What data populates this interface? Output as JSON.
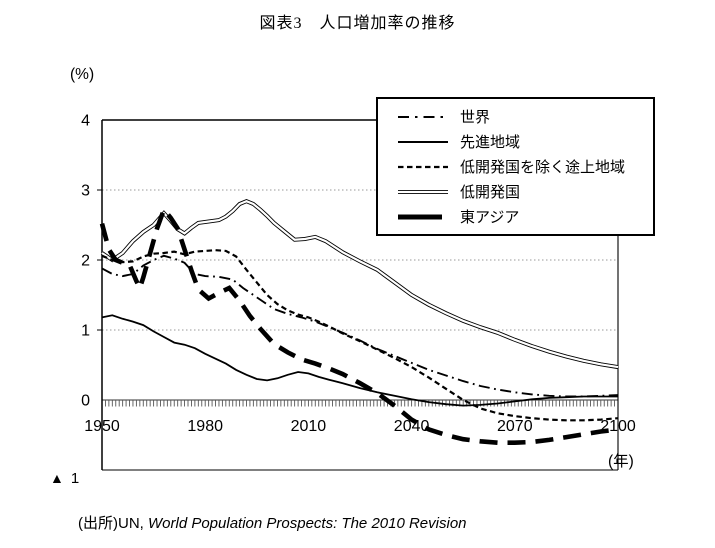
{
  "title": "図表3　人口増加率の推移",
  "source": {
    "prefix": "(出所)UN, ",
    "work": "World Population Prospects: The 2010 Revision"
  },
  "axis": {
    "neg_marker": "▲",
    "neg_value": "1"
  },
  "colors": {
    "line": "#000000",
    "grid": "#999999",
    "zero_axis": "#333333"
  },
  "chart_data": {
    "type": "line",
    "title": "人口増加率の推移",
    "ylabel": "(%)",
    "xlabel": "(年)",
    "xlim": [
      1950,
      2100
    ],
    "ylim": [
      -1,
      4
    ],
    "x_ticks": [
      1950,
      1980,
      2010,
      2040,
      2070,
      2100
    ],
    "y_ticks": [
      4,
      3,
      2,
      1,
      0
    ],
    "y_tick_neg": "▲ 1",
    "grid": "horizontal dotted gridlines at 1,2,3; zero axis drawn with yearly minor ticks",
    "legend_position": "boxed, top-right",
    "series": [
      {
        "key": "least-developed",
        "name": "低開発国",
        "line": "double",
        "points": [
          [
            1950,
            2.1
          ],
          [
            1953,
            2.0
          ],
          [
            1956,
            2.1
          ],
          [
            1959,
            2.27
          ],
          [
            1962,
            2.4
          ],
          [
            1965,
            2.5
          ],
          [
            1968,
            2.67
          ],
          [
            1970,
            2.56
          ],
          [
            1972,
            2.44
          ],
          [
            1974,
            2.38
          ],
          [
            1976,
            2.46
          ],
          [
            1978,
            2.53
          ],
          [
            1981,
            2.55
          ],
          [
            1984,
            2.57
          ],
          [
            1986,
            2.62
          ],
          [
            1988,
            2.7
          ],
          [
            1990,
            2.8
          ],
          [
            1992,
            2.84
          ],
          [
            1994,
            2.8
          ],
          [
            1996,
            2.72
          ],
          [
            1998,
            2.63
          ],
          [
            2000,
            2.53
          ],
          [
            2003,
            2.41
          ],
          [
            2006,
            2.29
          ],
          [
            2009,
            2.3
          ],
          [
            2012,
            2.33
          ],
          [
            2015,
            2.27
          ],
          [
            2020,
            2.11
          ],
          [
            2025,
            1.98
          ],
          [
            2030,
            1.86
          ],
          [
            2035,
            1.68
          ],
          [
            2040,
            1.5
          ],
          [
            2045,
            1.36
          ],
          [
            2050,
            1.24
          ],
          [
            2055,
            1.13
          ],
          [
            2060,
            1.04
          ],
          [
            2065,
            0.96
          ],
          [
            2070,
            0.86
          ],
          [
            2075,
            0.77
          ],
          [
            2080,
            0.69
          ],
          [
            2085,
            0.62
          ],
          [
            2090,
            0.56
          ],
          [
            2095,
            0.51
          ],
          [
            2100,
            0.47
          ]
        ]
      },
      {
        "key": "developing-excl-ldc",
        "name": "低開発国を除く途上地域",
        "line": "dashed",
        "points": [
          [
            1950,
            2.06
          ],
          [
            1953,
            2.0
          ],
          [
            1956,
            1.97
          ],
          [
            1959,
            1.98
          ],
          [
            1962,
            2.05
          ],
          [
            1965,
            2.09
          ],
          [
            1968,
            2.1
          ],
          [
            1971,
            2.12
          ],
          [
            1974,
            2.08
          ],
          [
            1977,
            2.12
          ],
          [
            1980,
            2.13
          ],
          [
            1983,
            2.14
          ],
          [
            1986,
            2.13
          ],
          [
            1989,
            2.05
          ],
          [
            1992,
            1.86
          ],
          [
            1995,
            1.68
          ],
          [
            1998,
            1.5
          ],
          [
            2001,
            1.37
          ],
          [
            2004,
            1.28
          ],
          [
            2007,
            1.22
          ],
          [
            2010,
            1.18
          ],
          [
            2013,
            1.12
          ],
          [
            2016,
            1.05
          ],
          [
            2020,
            0.95
          ],
          [
            2025,
            0.84
          ],
          [
            2030,
            0.72
          ],
          [
            2035,
            0.6
          ],
          [
            2040,
            0.47
          ],
          [
            2045,
            0.32
          ],
          [
            2050,
            0.16
          ],
          [
            2055,
            0
          ],
          [
            2060,
            -0.12
          ],
          [
            2065,
            -0.19
          ],
          [
            2070,
            -0.23
          ],
          [
            2075,
            -0.26
          ],
          [
            2080,
            -0.28
          ],
          [
            2085,
            -0.29
          ],
          [
            2090,
            -0.29
          ],
          [
            2095,
            -0.28
          ],
          [
            2100,
            -0.26
          ]
        ]
      },
      {
        "key": "world",
        "name": "世界",
        "line": "dash-dot",
        "points": [
          [
            1950,
            1.88
          ],
          [
            1953,
            1.8
          ],
          [
            1956,
            1.77
          ],
          [
            1959,
            1.8
          ],
          [
            1962,
            1.92
          ],
          [
            1965,
            2.0
          ],
          [
            1968,
            2.06
          ],
          [
            1971,
            2.02
          ],
          [
            1974,
            1.96
          ],
          [
            1977,
            1.8
          ],
          [
            1980,
            1.77
          ],
          [
            1984,
            1.76
          ],
          [
            1988,
            1.72
          ],
          [
            1991,
            1.6
          ],
          [
            1994,
            1.5
          ],
          [
            1997,
            1.4
          ],
          [
            2000,
            1.3
          ],
          [
            2004,
            1.23
          ],
          [
            2008,
            1.18
          ],
          [
            2012,
            1.12
          ],
          [
            2016,
            1.04
          ],
          [
            2020,
            0.96
          ],
          [
            2025,
            0.85
          ],
          [
            2030,
            0.73
          ],
          [
            2035,
            0.63
          ],
          [
            2040,
            0.53
          ],
          [
            2045,
            0.43
          ],
          [
            2050,
            0.35
          ],
          [
            2055,
            0.27
          ],
          [
            2060,
            0.2
          ],
          [
            2065,
            0.15
          ],
          [
            2070,
            0.11
          ],
          [
            2075,
            0.08
          ],
          [
            2080,
            0.06
          ],
          [
            2085,
            0.05
          ],
          [
            2090,
            0.05
          ],
          [
            2095,
            0.06
          ],
          [
            2100,
            0.07
          ]
        ]
      },
      {
        "key": "developed-regions",
        "name": "先進地域",
        "line": "solid",
        "points": [
          [
            1950,
            1.18
          ],
          [
            1953,
            1.21
          ],
          [
            1956,
            1.16
          ],
          [
            1959,
            1.12
          ],
          [
            1962,
            1.07
          ],
          [
            1965,
            0.98
          ],
          [
            1968,
            0.9
          ],
          [
            1971,
            0.82
          ],
          [
            1974,
            0.79
          ],
          [
            1977,
            0.74
          ],
          [
            1980,
            0.66
          ],
          [
            1983,
            0.59
          ],
          [
            1986,
            0.52
          ],
          [
            1989,
            0.43
          ],
          [
            1992,
            0.36
          ],
          [
            1995,
            0.3
          ],
          [
            1998,
            0.28
          ],
          [
            2001,
            0.31
          ],
          [
            2004,
            0.36
          ],
          [
            2007,
            0.4
          ],
          [
            2010,
            0.38
          ],
          [
            2013,
            0.33
          ],
          [
            2016,
            0.29
          ],
          [
            2020,
            0.24
          ],
          [
            2025,
            0.17
          ],
          [
            2030,
            0.11
          ],
          [
            2035,
            0.06
          ],
          [
            2040,
            0.01
          ],
          [
            2045,
            -0.03
          ],
          [
            2050,
            -0.06
          ],
          [
            2055,
            -0.08
          ],
          [
            2060,
            -0.07
          ],
          [
            2065,
            -0.05
          ],
          [
            2070,
            -0.02
          ],
          [
            2075,
            0.01
          ],
          [
            2080,
            0.03
          ],
          [
            2085,
            0.04
          ],
          [
            2090,
            0.05
          ],
          [
            2095,
            0.05
          ],
          [
            2100,
            0.05
          ]
        ]
      },
      {
        "key": "east-asia",
        "name": "東アジア",
        "line": "thick-dashed",
        "points": [
          [
            1950,
            2.52
          ],
          [
            1952,
            2.15
          ],
          [
            1954,
            2.0
          ],
          [
            1956,
            1.96
          ],
          [
            1958,
            1.93
          ],
          [
            1960,
            1.7
          ],
          [
            1961,
            1.6
          ],
          [
            1962,
            1.75
          ],
          [
            1964,
            2.1
          ],
          [
            1966,
            2.45
          ],
          [
            1968,
            2.72
          ],
          [
            1970,
            2.6
          ],
          [
            1972,
            2.45
          ],
          [
            1974,
            2.15
          ],
          [
            1976,
            1.85
          ],
          [
            1978,
            1.58
          ],
          [
            1981,
            1.45
          ],
          [
            1984,
            1.53
          ],
          [
            1987,
            1.6
          ],
          [
            1990,
            1.42
          ],
          [
            1993,
            1.2
          ],
          [
            1996,
            1.02
          ],
          [
            2000,
            0.8
          ],
          [
            2004,
            0.68
          ],
          [
            2008,
            0.58
          ],
          [
            2012,
            0.52
          ],
          [
            2016,
            0.45
          ],
          [
            2020,
            0.37
          ],
          [
            2025,
            0.24
          ],
          [
            2030,
            0.1
          ],
          [
            2035,
            -0.08
          ],
          [
            2040,
            -0.28
          ],
          [
            2045,
            -0.42
          ],
          [
            2050,
            -0.5
          ],
          [
            2055,
            -0.56
          ],
          [
            2060,
            -0.59
          ],
          [
            2065,
            -0.61
          ],
          [
            2070,
            -0.61
          ],
          [
            2075,
            -0.6
          ],
          [
            2080,
            -0.57
          ],
          [
            2085,
            -0.53
          ],
          [
            2090,
            -0.49
          ],
          [
            2095,
            -0.45
          ],
          [
            2100,
            -0.42
          ]
        ]
      }
    ],
    "legend_order": [
      "world",
      "developed-regions",
      "developing-excl-ldc",
      "least-developed",
      "east-asia"
    ]
  }
}
